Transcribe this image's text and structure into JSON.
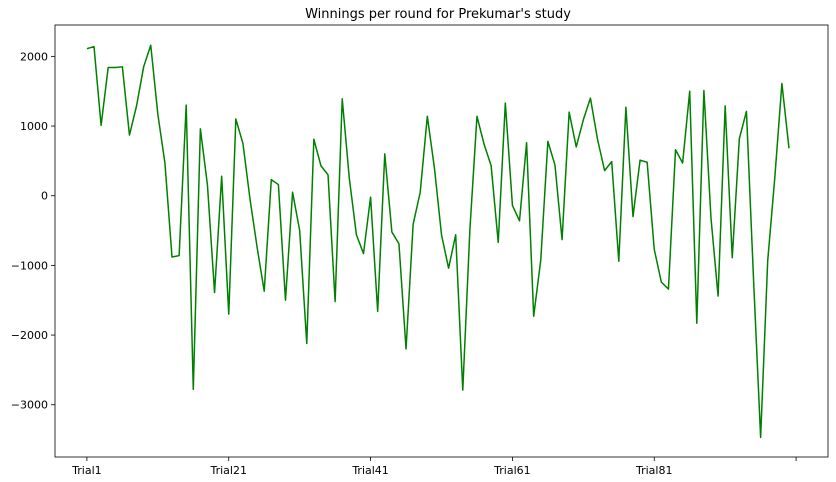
{
  "chart_data": {
    "type": "line",
    "title": "Winnings per round for Prekumar's study",
    "xlabel": "",
    "ylabel": "",
    "color": "#008000",
    "grid": false,
    "ylim": [
      -3750,
      2450
    ],
    "xlim": [
      -4.5,
      104.5
    ],
    "x_tick_labels": [
      "Trial1",
      "Trial21",
      "Trial41",
      "Trial61",
      "Trial81",
      ""
    ],
    "y_ticks": [
      -3000,
      -2000,
      -1000,
      0,
      1000,
      2000
    ],
    "y_tick_labels": [
      "−3000",
      "−2000",
      "−1000",
      "0",
      "1000",
      "2000"
    ],
    "series": [
      {
        "values": [
          2110,
          2140,
          1010,
          1840,
          1840,
          1850,
          870,
          1290,
          1850,
          2160,
          1170,
          470,
          -880,
          -860,
          1300,
          -2780,
          960,
          150,
          -1390,
          280,
          -1700,
          1100,
          750,
          -50,
          -740,
          -1370,
          230,
          160,
          -1500,
          50,
          -500,
          -2120,
          810,
          430,
          300,
          -1520,
          1390,
          250,
          -560,
          -830,
          -20,
          -1660,
          600,
          -520,
          -690,
          -2200,
          -410,
          50,
          1140,
          400,
          -560,
          -1040,
          -560,
          -2790,
          -490,
          1140,
          740,
          430,
          -670,
          1330,
          -140,
          -360,
          760,
          -1730,
          -920,
          780,
          440,
          -630,
          1200,
          700,
          1090,
          1400,
          810,
          360,
          490,
          -940,
          1270,
          -300,
          510,
          480,
          -770,
          -1240,
          -1340,
          660,
          470,
          1500,
          -1830,
          1510,
          -320,
          -1440,
          1290,
          -890,
          820,
          1210,
          -1200,
          -3470,
          -930,
          260,
          1610,
          680
        ]
      }
    ]
  }
}
